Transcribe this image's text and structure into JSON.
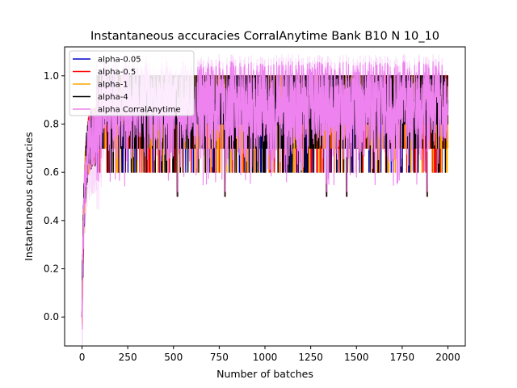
{
  "chart_data": {
    "type": "line",
    "title": "Instantaneous accuracies CorralAnytime Bank B10 N 10_10",
    "xlabel": "Number of batches",
    "ylabel": "Instantaneous accuracies",
    "xlim": [
      -95,
      2095
    ],
    "ylim": [
      -0.12,
      1.12
    ],
    "x_ticks": [
      0,
      250,
      500,
      750,
      1000,
      1250,
      1500,
      1750,
      2000
    ],
    "y_ticks": [
      0.0,
      0.2,
      0.4,
      0.6,
      0.8,
      1.0
    ],
    "x_tick_labels": [
      "0",
      "250",
      "500",
      "750",
      "1000",
      "1250",
      "1500",
      "1750",
      "2000"
    ],
    "y_tick_labels": [
      "0.0",
      "0.2",
      "0.4",
      "0.6",
      "0.8",
      "1.0"
    ],
    "grid": false,
    "legend_position": "top-left",
    "series": [
      {
        "name": "alpha-0.05",
        "color": "#0000cc",
        "x_range": [
          0,
          2000
        ],
        "y_min": 0.5,
        "y_max": 1.0,
        "typical": [
          0.7,
          1.0
        ]
      },
      {
        "name": "alpha-0.5",
        "color": "#ff0000",
        "x_range": [
          0,
          2000
        ],
        "y_min": 0.5,
        "y_max": 1.0,
        "typical": [
          0.7,
          1.0
        ]
      },
      {
        "name": "alpha-1",
        "color": "#ffa500",
        "x_range": [
          0,
          2000
        ],
        "y_min": 0.5,
        "y_max": 1.0,
        "typical": [
          0.7,
          1.0
        ]
      },
      {
        "name": "alpha-4",
        "color": "#000000",
        "x_range": [
          0,
          2000
        ],
        "y_min": 0.5,
        "y_max": 1.0,
        "typical": [
          0.7,
          1.0
        ]
      },
      {
        "name": "alpha CorralAnytime",
        "color": "#ee82ee",
        "x_range": [
          0,
          2000
        ],
        "y_min": -0.05,
        "y_max": 1.05,
        "typical": [
          0.7,
          1.0
        ]
      }
    ],
    "notable_dips": [
      {
        "x": 520,
        "y": 0.5
      },
      {
        "x": 780,
        "y": 0.5
      },
      {
        "x": 1335,
        "y": 0.5
      },
      {
        "x": 1445,
        "y": 0.5
      },
      {
        "x": 1885,
        "y": 0.5
      }
    ],
    "warmup": {
      "x_end": 80,
      "y_start": 0.0,
      "y_end": 0.75
    }
  }
}
